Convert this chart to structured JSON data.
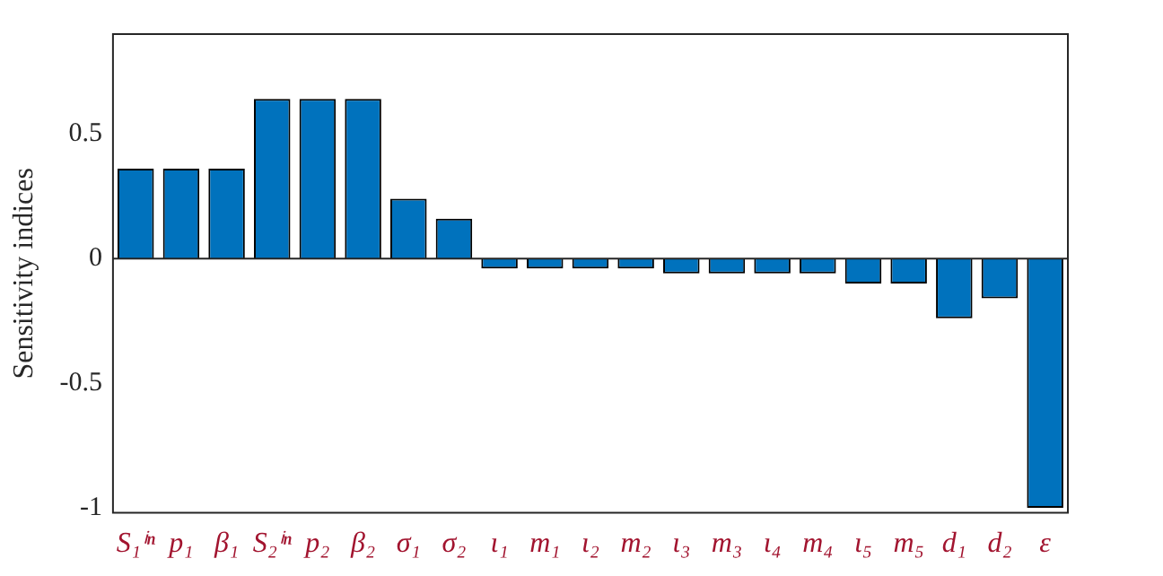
{
  "chart_data": {
    "type": "bar",
    "ylabel": "Sensitivity indices",
    "categories": [
      "S₁ⁱⁿ",
      "p₁",
      "β₁",
      "S₂ⁱⁿ",
      "p₂",
      "β₂",
      "σ₁",
      "σ₂",
      "ι₁",
      "m₁",
      "ι₂",
      "m₂",
      "ι₃",
      "m₃",
      "ι₄",
      "m₄",
      "ι₅",
      "m₅",
      "d₁",
      "d₂",
      "ε"
    ],
    "values": [
      0.36,
      0.36,
      0.36,
      0.64,
      0.64,
      0.64,
      0.24,
      0.16,
      -0.04,
      -0.04,
      -0.04,
      -0.04,
      -0.06,
      -0.06,
      -0.06,
      -0.06,
      -0.1,
      -0.1,
      -0.24,
      -0.16,
      -1
    ],
    "color": "#0072bd",
    "ylim": [
      -1.02,
      0.9
    ],
    "yticks": [
      -1,
      -0.5,
      0,
      0.5
    ],
    "grid": false,
    "legend": false,
    "ref_lines": [
      {
        "axis": "y",
        "value": 0
      }
    ]
  }
}
